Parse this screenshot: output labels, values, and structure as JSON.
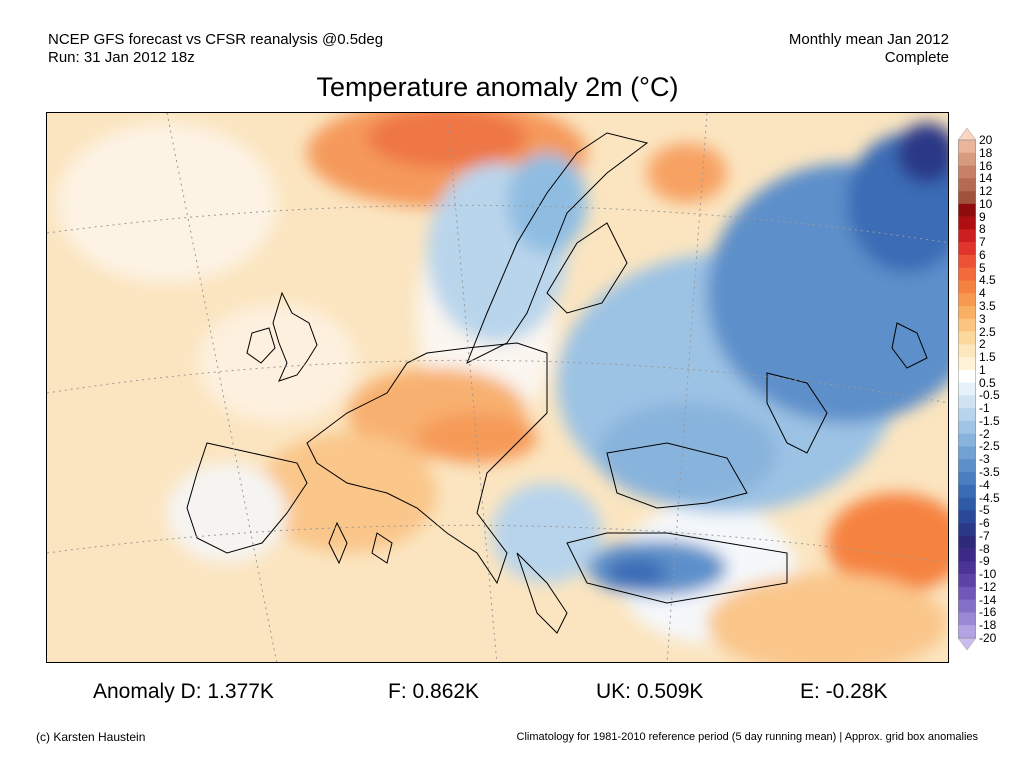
{
  "header": {
    "left_line1": "NCEP GFS forecast vs CFSR reanalysis @0.5deg",
    "left_line2": "Run: 31 Jan 2012 18z",
    "right_line1": "Monthly mean Jan 2012",
    "right_line2": "Complete"
  },
  "title": "Temperature anomaly 2m (°C)",
  "colorbar": {
    "labels": [
      "20",
      "18",
      "16",
      "14",
      "12",
      "10",
      "9",
      "8",
      "7",
      "6",
      "5",
      "4.5",
      "4",
      "3.5",
      "3",
      "2.5",
      "2",
      "1.5",
      "1",
      "0.5",
      "-0.5",
      "-1",
      "-1.5",
      "-2",
      "-2.5",
      "-3",
      "-3.5",
      "-4",
      "-4.5",
      "-5",
      "-6",
      "-7",
      "-8",
      "-9",
      "-10",
      "-12",
      "-14",
      "-16",
      "-18",
      "-20"
    ],
    "colors": [
      "#f9d5c2",
      "#e9b59b",
      "#d79b80",
      "#c78168",
      "#b56a52",
      "#a0523d",
      "#8e0c0c",
      "#b00f12",
      "#cc2020",
      "#e0342c",
      "#ec5236",
      "#f36a3b",
      "#f6823f",
      "#f89950",
      "#f9b064",
      "#fbc57f",
      "#fcd89c",
      "#fde7bd",
      "#fff2d6",
      "#ffffff",
      "#e6f1fa",
      "#cfe3f3",
      "#b7d4ec",
      "#9fc4e4",
      "#88b3dc",
      "#72a2d3",
      "#5d90ca",
      "#4a7ec0",
      "#3a6cb5",
      "#2e5aa8",
      "#2a4897",
      "#2b3787",
      "#302a7b",
      "#3c2a86",
      "#4b3495",
      "#5c44a6",
      "#7058b8",
      "#8570c8",
      "#9c89d6",
      "#b3a3e3",
      "#c9bcee"
    ]
  },
  "stats": {
    "anomaly_d": "Anomaly D: 1.377K",
    "anomaly_f": "F: 0.862K",
    "anomaly_uk": "UK: 0.509K",
    "anomaly_e": "E: -0.28K"
  },
  "footer": {
    "credit": "(c) Karsten Haustein",
    "note": "Climatology for 1981-2010 reference period (5 day running mean) | Approx. grid box anomalies"
  }
}
